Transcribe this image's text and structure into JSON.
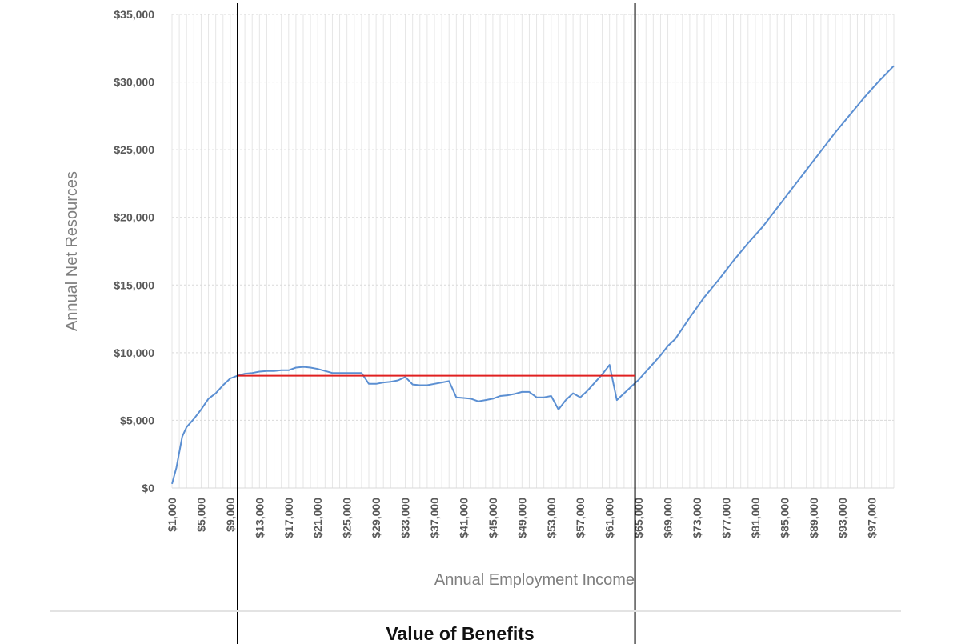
{
  "chart_data": {
    "type": "line",
    "title": "",
    "xlabel": "Annual Employment Income",
    "ylabel": "Annual Net Resources",
    "ylim": [
      0,
      35000
    ],
    "yticks": [
      0,
      5000,
      10000,
      15000,
      20000,
      25000,
      30000,
      35000
    ],
    "ytick_labels": [
      "$0",
      "$5,000",
      "$10,000",
      "$15,000",
      "$20,000",
      "$25,000",
      "$30,000",
      "$35,000"
    ],
    "xlim": [
      1000,
      100000
    ],
    "xticks": [
      1000,
      5000,
      9000,
      13000,
      17000,
      21000,
      25000,
      29000,
      33000,
      37000,
      41000,
      45000,
      49000,
      53000,
      57000,
      61000,
      65000,
      69000,
      73000,
      77000,
      81000,
      85000,
      89000,
      93000,
      97000
    ],
    "xtick_labels": [
      "$1,000",
      "$5,000",
      "$9,000",
      "$13,000",
      "$17,000",
      "$21,000",
      "$25,000",
      "$29,000",
      "$33,000",
      "$37,000",
      "$41,000",
      "$45,000",
      "$49,000",
      "$53,000",
      "$57,000",
      "$61,000",
      "$65,000",
      "$69,000",
      "$73,000",
      "$77,000",
      "$81,000",
      "$85,000",
      "$89,000",
      "$93,000",
      "$97,000"
    ],
    "grid": {
      "horizontal": true,
      "vertical_minor": true
    },
    "series": [
      {
        "color": "#5b8fd2",
        "x": [
          1000,
          1600,
          2400,
          3000,
          4000,
          5000,
          6000,
          7000,
          8000,
          9000,
          10000,
          11000,
          12000,
          13000,
          14000,
          15000,
          16000,
          17000,
          18000,
          19000,
          20000,
          21000,
          22000,
          23000,
          24000,
          25000,
          26000,
          27000,
          28000,
          29000,
          30000,
          31000,
          32000,
          33000,
          34000,
          35000,
          36000,
          37000,
          38000,
          39000,
          40000,
          41000,
          42000,
          43000,
          44000,
          45000,
          46000,
          47000,
          48000,
          49000,
          50000,
          51000,
          52000,
          53000,
          54000,
          55000,
          56000,
          57000,
          58000,
          59000,
          60000,
          61000,
          62000,
          63000,
          64000,
          65000,
          66000,
          67000,
          68000,
          69000,
          70000,
          72000,
          74000,
          76000,
          78000,
          80000,
          82000,
          84000,
          86000,
          88000,
          90000,
          92000,
          94000,
          96000,
          98000,
          100000
        ],
        "values": [
          300,
          1500,
          3800,
          4500,
          5100,
          5800,
          6600,
          7000,
          7600,
          8100,
          8300,
          8450,
          8500,
          8600,
          8650,
          8650,
          8700,
          8700,
          8900,
          8950,
          8900,
          8800,
          8650,
          8500,
          8500,
          8500,
          8500,
          8500,
          7700,
          7700,
          7800,
          7850,
          7950,
          8200,
          7650,
          7600,
          7600,
          7700,
          7800,
          7900,
          6700,
          6650,
          6600,
          6400,
          6500,
          6600,
          6800,
          6850,
          6950,
          7100,
          7100,
          6700,
          6700,
          6800,
          5800,
          6500,
          7000,
          6700,
          7200,
          7800,
          8400,
          9100,
          6500,
          7000,
          7500,
          8000,
          8600,
          9200,
          9800,
          10500,
          11000,
          12600,
          14100,
          15400,
          16800,
          18100,
          19300,
          20700,
          22100,
          23500,
          24900,
          26300,
          27600,
          28900,
          30100,
          31200
        ]
      }
    ],
    "reference_line": {
      "value": 8300,
      "x_range": [
        10000,
        64500
      ],
      "color": "#e02020"
    },
    "bracket_lines": [
      {
        "x": 10000
      },
      {
        "x": 64500
      }
    ],
    "footer_title": "Value of Benefits"
  }
}
